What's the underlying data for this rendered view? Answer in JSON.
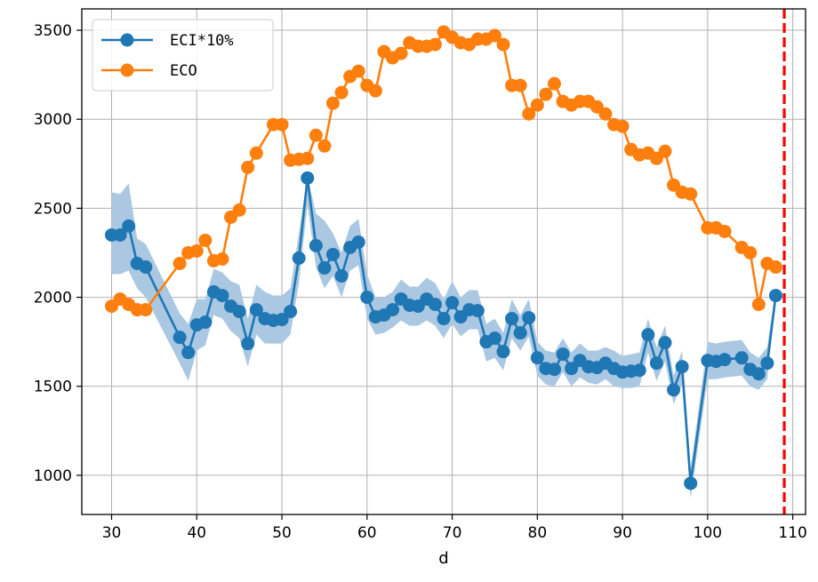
{
  "chart_data": {
    "type": "line",
    "xlabel": "d",
    "ylabel": "",
    "xlim": [
      26.5,
      111.5
    ],
    "ylim": [
      780,
      3620
    ],
    "xticks": [
      30,
      40,
      50,
      60,
      70,
      80,
      90,
      100,
      110
    ],
    "yticks": [
      1000,
      1500,
      2000,
      2500,
      3000,
      3500
    ],
    "grid": true,
    "legend_position": "top-left",
    "reference_line": {
      "x": 109,
      "color": "#ff0000",
      "style": "dashed"
    },
    "series": [
      {
        "name": "ECI*10%",
        "color": "#1f77b4",
        "band_color": "#aac8e2",
        "points": [
          [
            30,
            2350,
            2130,
            2590
          ],
          [
            31,
            2350,
            2130,
            2580
          ],
          [
            32,
            2400,
            2150,
            2640
          ],
          [
            33,
            2190,
            2050,
            2330
          ],
          [
            34,
            2170,
            2000,
            2300
          ],
          [
            38,
            1775,
            1630,
            1910
          ],
          [
            39,
            1690,
            1530,
            1850
          ],
          [
            40,
            1845,
            1700,
            1990
          ],
          [
            41,
            1860,
            1730,
            1990
          ],
          [
            42,
            2030,
            1900,
            2160
          ],
          [
            43,
            2010,
            1880,
            2140
          ],
          [
            44,
            1950,
            1810,
            2090
          ],
          [
            45,
            1920,
            1770,
            2070
          ],
          [
            46,
            1740,
            1610,
            1880
          ],
          [
            47,
            1930,
            1790,
            2070
          ],
          [
            48,
            1880,
            1740,
            2030
          ],
          [
            49,
            1870,
            1740,
            2010
          ],
          [
            50,
            1875,
            1740,
            2010
          ],
          [
            51,
            1920,
            1790,
            2050
          ],
          [
            52,
            2220,
            2080,
            2360
          ],
          [
            53,
            2670,
            2520,
            2680
          ],
          [
            54,
            2290,
            2170,
            2470
          ],
          [
            55,
            2165,
            2050,
            2430
          ],
          [
            56,
            2240,
            2120,
            2360
          ],
          [
            57,
            2120,
            2000,
            2250
          ],
          [
            58,
            2280,
            2150,
            2400
          ],
          [
            59,
            2310,
            2180,
            2440
          ],
          [
            60,
            2000,
            1880,
            2130
          ],
          [
            61,
            1890,
            1790,
            2000
          ],
          [
            62,
            1900,
            1800,
            2000
          ],
          [
            63,
            1930,
            1830,
            2030
          ],
          [
            64,
            1990,
            1870,
            2100
          ],
          [
            65,
            1955,
            1840,
            2060
          ],
          [
            66,
            1950,
            1840,
            2060
          ],
          [
            67,
            1990,
            1870,
            2110
          ],
          [
            68,
            1960,
            1840,
            2080
          ],
          [
            69,
            1880,
            1770,
            1990
          ],
          [
            70,
            1970,
            1850,
            2090
          ],
          [
            71,
            1890,
            1780,
            2000
          ],
          [
            72,
            1930,
            1820,
            2040
          ],
          [
            73,
            1925,
            1820,
            2040
          ],
          [
            74,
            1750,
            1640,
            1850
          ],
          [
            75,
            1770,
            1660,
            1880
          ],
          [
            76,
            1695,
            1590,
            1800
          ],
          [
            77,
            1880,
            1770,
            1990
          ],
          [
            78,
            1800,
            1700,
            1900
          ],
          [
            79,
            1885,
            1780,
            1990
          ],
          [
            80,
            1660,
            1560,
            1750
          ],
          [
            81,
            1600,
            1510,
            1700
          ],
          [
            82,
            1595,
            1500,
            1690
          ],
          [
            83,
            1680,
            1580,
            1770
          ],
          [
            84,
            1600,
            1500,
            1690
          ],
          [
            85,
            1645,
            1550,
            1740
          ],
          [
            86,
            1610,
            1520,
            1700
          ],
          [
            87,
            1605,
            1510,
            1700
          ],
          [
            88,
            1630,
            1540,
            1720
          ],
          [
            89,
            1600,
            1500,
            1700
          ],
          [
            90,
            1580,
            1490,
            1670
          ],
          [
            91,
            1585,
            1490,
            1680
          ],
          [
            92,
            1590,
            1500,
            1690
          ],
          [
            93,
            1790,
            1690,
            1880
          ],
          [
            94,
            1630,
            1530,
            1720
          ],
          [
            95,
            1745,
            1640,
            1840
          ],
          [
            96,
            1480,
            1400,
            1560
          ],
          [
            97,
            1610,
            1510,
            1700
          ],
          [
            98,
            955,
            870,
            1040
          ],
          [
            100,
            1645,
            1540,
            1750
          ],
          [
            101,
            1640,
            1540,
            1740
          ],
          [
            102,
            1650,
            1550,
            1750
          ],
          [
            104,
            1660,
            1560,
            1760
          ],
          [
            105,
            1595,
            1500,
            1690
          ],
          [
            106,
            1570,
            1480,
            1660
          ],
          [
            107,
            1630,
            1540,
            1720
          ],
          [
            108,
            2010,
            1970,
            2050
          ]
        ]
      },
      {
        "name": "ECO",
        "color": "#ff7f0e",
        "points": [
          [
            30,
            1950
          ],
          [
            31,
            1990
          ],
          [
            32,
            1960
          ],
          [
            33,
            1930
          ],
          [
            34,
            1930
          ],
          [
            38,
            2190
          ],
          [
            39,
            2250
          ],
          [
            40,
            2260
          ],
          [
            41,
            2320
          ],
          [
            42,
            2205
          ],
          [
            43,
            2215
          ],
          [
            44,
            2450
          ],
          [
            45,
            2490
          ],
          [
            46,
            2730
          ],
          [
            47,
            2810
          ],
          [
            49,
            2970
          ],
          [
            50,
            2970
          ],
          [
            51,
            2770
          ],
          [
            52,
            2775
          ],
          [
            53,
            2780
          ],
          [
            54,
            2910
          ],
          [
            55,
            2850
          ],
          [
            56,
            3090
          ],
          [
            57,
            3150
          ],
          [
            58,
            3240
          ],
          [
            59,
            3270
          ],
          [
            60,
            3190
          ],
          [
            61,
            3160
          ],
          [
            62,
            3380
          ],
          [
            63,
            3345
          ],
          [
            64,
            3370
          ],
          [
            65,
            3430
          ],
          [
            66,
            3410
          ],
          [
            67,
            3410
          ],
          [
            68,
            3420
          ],
          [
            69,
            3490
          ],
          [
            70,
            3460
          ],
          [
            71,
            3430
          ],
          [
            72,
            3420
          ],
          [
            73,
            3450
          ],
          [
            74,
            3450
          ],
          [
            75,
            3470
          ],
          [
            76,
            3420
          ],
          [
            77,
            3190
          ],
          [
            78,
            3190
          ],
          [
            79,
            3030
          ],
          [
            80,
            3080
          ],
          [
            81,
            3140
          ],
          [
            82,
            3200
          ],
          [
            83,
            3100
          ],
          [
            84,
            3080
          ],
          [
            85,
            3100
          ],
          [
            86,
            3100
          ],
          [
            87,
            3070
          ],
          [
            88,
            3030
          ],
          [
            89,
            2970
          ],
          [
            90,
            2960
          ],
          [
            91,
            2830
          ],
          [
            92,
            2800
          ],
          [
            93,
            2810
          ],
          [
            94,
            2780
          ],
          [
            95,
            2820
          ],
          [
            96,
            2630
          ],
          [
            97,
            2590
          ],
          [
            98,
            2580
          ],
          [
            100,
            2390
          ],
          [
            101,
            2390
          ],
          [
            102,
            2370
          ],
          [
            104,
            2280
          ],
          [
            105,
            2250
          ],
          [
            106,
            1960
          ],
          [
            107,
            2190
          ],
          [
            108,
            2170
          ]
        ]
      }
    ]
  }
}
